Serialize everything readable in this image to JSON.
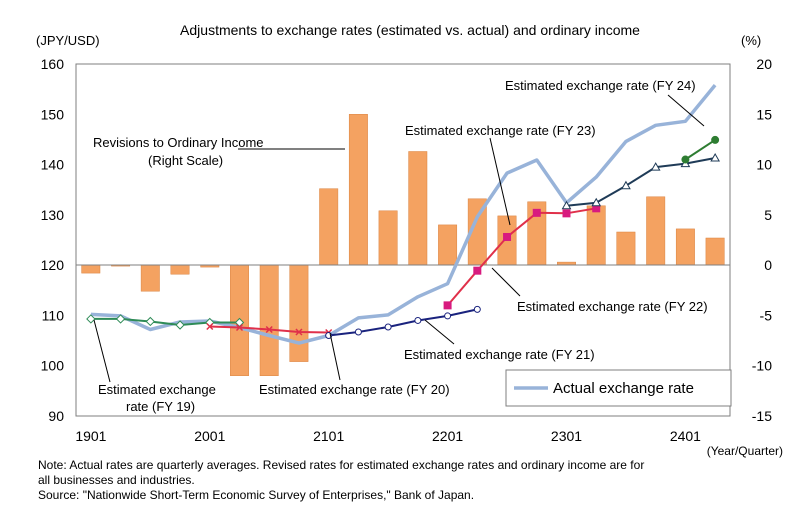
{
  "chart_data": {
    "type": "bar+line",
    "title": "Adjustments to exchange rates (estimated vs. actual) and ordinary income",
    "left_axis_label": "(JPY/USD)",
    "right_axis_label": "(%)",
    "x_axis_label": "(Year/Quarter)",
    "left_ylim": [
      90,
      160
    ],
    "left_ticks": [
      "160",
      "150",
      "140",
      "130",
      "120",
      "110",
      "100",
      "90"
    ],
    "right_ylim": [
      -15,
      20
    ],
    "right_ticks": [
      "20",
      "15",
      "10",
      "5",
      "0",
      "-5",
      "-10",
      "-15"
    ],
    "x_ticks": [
      "1901",
      "2001",
      "2101",
      "2201",
      "2301",
      "2401"
    ],
    "quarters": [
      "1901",
      "1902",
      "1903",
      "1904",
      "2001",
      "2002",
      "2003",
      "2004",
      "2101",
      "2102",
      "2103",
      "2104",
      "2201",
      "2202",
      "2203",
      "2204",
      "2301",
      "2302",
      "2303",
      "2304",
      "2401",
      "2402"
    ],
    "bars": {
      "name": "Revisions to Ordinary Income (Right Scale)",
      "color": "#f4a261",
      "values": [
        -0.8,
        -0.1,
        -2.6,
        -0.9,
        -0.2,
        -11.0,
        -11.0,
        -9.6,
        7.6,
        15.0,
        5.4,
        11.3,
        4.0,
        6.6,
        4.9,
        6.3,
        0.3,
        5.9,
        3.3,
        6.8,
        3.6,
        2.7
      ]
    },
    "series": [
      {
        "name": "Actual exchange rate",
        "color": "#98b3d9",
        "x": [
          0,
          1,
          2,
          3,
          4,
          5,
          6,
          7,
          8,
          9,
          10,
          11,
          12,
          13,
          14,
          15,
          16,
          17,
          18,
          19,
          20,
          21
        ],
        "values": [
          110.2,
          109.9,
          107.2,
          108.7,
          108.9,
          107.6,
          106.0,
          104.5,
          106.0,
          109.5,
          110.1,
          113.7,
          116.3,
          129.6,
          138.3,
          140.9,
          132.4,
          137.5,
          144.6,
          147.8,
          148.6,
          155.8
        ]
      },
      {
        "name": "Estimated exchange rate (FY 19)",
        "color": "#2e8b57",
        "marker": "diamond-open",
        "x": [
          0,
          1,
          2,
          3,
          4,
          5
        ],
        "values": [
          109.3,
          109.3,
          108.8,
          108.1,
          108.6,
          108.6
        ]
      },
      {
        "name": "Estimated exchange rate (FY 20)",
        "color": "#e0304a",
        "marker": "x",
        "x": [
          4,
          5,
          6,
          7,
          8
        ],
        "values": [
          107.8,
          107.6,
          107.2,
          106.7,
          106.6
        ]
      },
      {
        "name": "Estimated exchange rate (FY 21)",
        "color": "#1a237e",
        "marker": "circle-open",
        "x": [
          8,
          9,
          10,
          11,
          12,
          13
        ],
        "values": [
          106.0,
          106.7,
          107.7,
          109.0,
          109.9,
          111.2
        ]
      },
      {
        "name": "Estimated exchange rate (FY 22)",
        "color": "#e0304a",
        "marker": "square",
        "x": [
          12,
          13,
          14,
          15,
          16,
          17
        ],
        "values": [
          112.0,
          118.9,
          125.6,
          130.4,
          130.3,
          131.3
        ]
      },
      {
        "name": "Estimated exchange rate (FY 23)",
        "color": "#1f3b57",
        "marker": "triangle-open",
        "x": [
          16,
          17,
          18,
          19,
          20,
          21
        ],
        "values": [
          131.8,
          132.4,
          135.8,
          139.5,
          140.2,
          141.3
        ]
      },
      {
        "name": "Estimated exchange rate (FY 24)",
        "color": "#2e7d32",
        "marker": "circle",
        "x": [
          20,
          21
        ],
        "values": [
          141.0,
          144.9
        ]
      }
    ],
    "annotations": {
      "bars_label": [
        "Revisions to Ordinary Income",
        "(Right Scale)"
      ],
      "fy19": [
        "Estimated exchange",
        "rate (FY 19)"
      ],
      "fy20": "Estimated exchange rate (FY 20)",
      "fy21": "Estimated exchange rate (FY 21)",
      "fy22": "Estimated exchange rate (FY 22)",
      "fy23": "Estimated exchange rate (FY 23)",
      "fy24": "Estimated exchange rate (FY 24)"
    },
    "legend": {
      "label": "Actual exchange rate",
      "placement": "bottom-right"
    },
    "grid": false
  },
  "notes": {
    "line1": "Note: Actual rates are quarterly averages. Revised rates for estimated exchange rates and ordinary income are for",
    "line2": "all businesses and industries.",
    "line3": "Source: \"Nationwide Short-Term Economic Survey of Enterprises,\" Bank of Japan."
  }
}
